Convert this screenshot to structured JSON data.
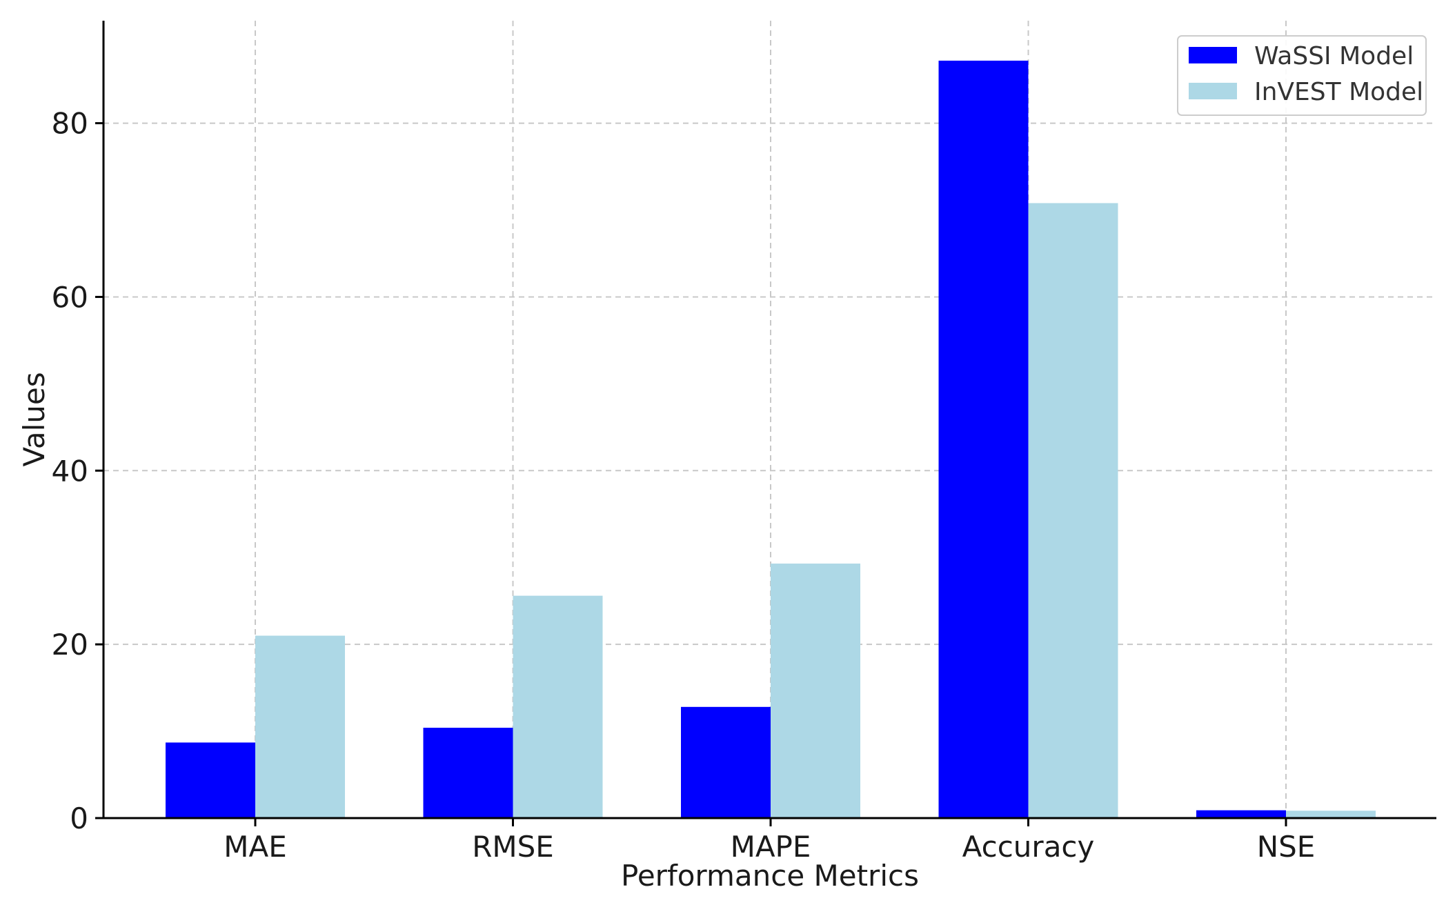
{
  "chart_data": {
    "type": "bar",
    "title": "",
    "xlabel": "Performance Metrics",
    "ylabel": "Values",
    "categories": [
      "MAE",
      "RMSE",
      "MAPE",
      "Accuracy",
      "NSE"
    ],
    "series": [
      {
        "name": "WaSSI Model",
        "color": "#0000ff",
        "values": [
          8.7,
          10.4,
          12.8,
          87.2,
          0.9
        ]
      },
      {
        "name": "InVEST Model",
        "color": "#add8e6",
        "values": [
          21.0,
          25.6,
          29.3,
          70.8,
          0.85
        ]
      }
    ],
    "ylim": [
      0,
      91.8
    ],
    "yticks": [
      0,
      20,
      40,
      60,
      80
    ],
    "grid": true,
    "legend_position": "top-right"
  }
}
